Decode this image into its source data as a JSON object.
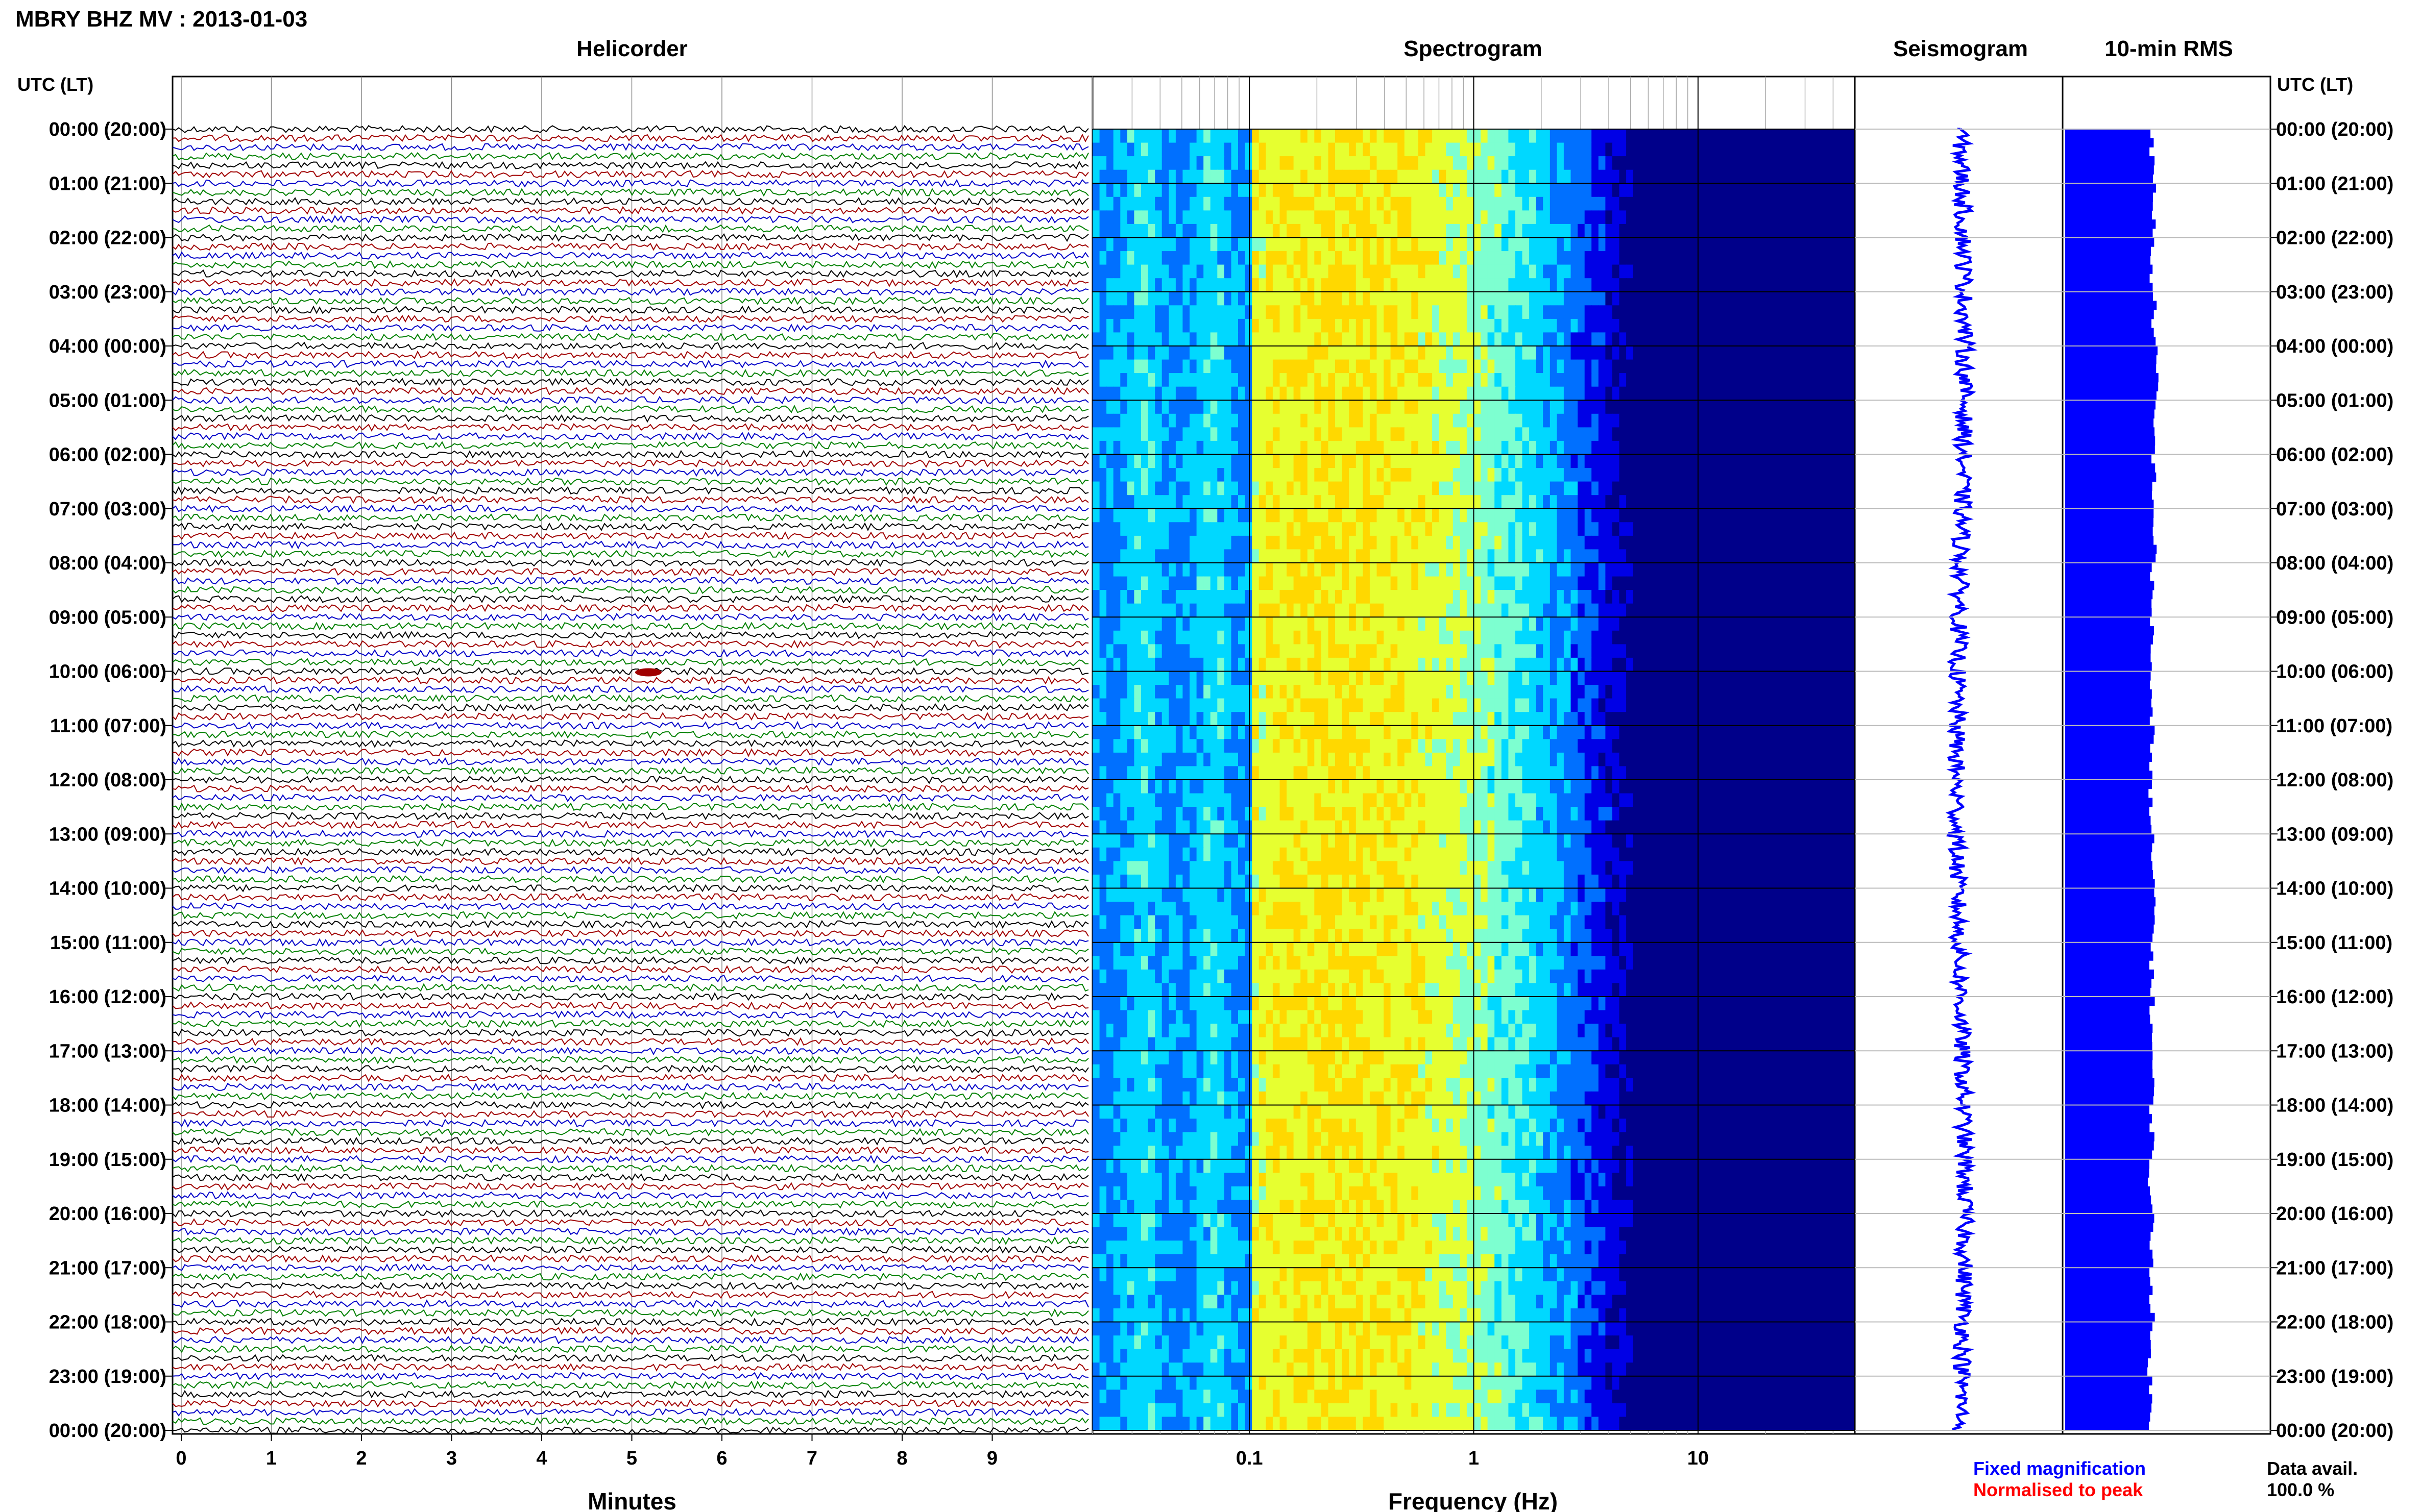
{
  "title": "MBRY BHZ MV : 2013-01-03",
  "panels": {
    "helicorder": "Helicorder",
    "spectrogram": "Spectrogram",
    "seismogram": "Seismogram",
    "rms": "10-min RMS"
  },
  "axis_header": "UTC (LT)",
  "time_labels": [
    "00:00 (20:00)",
    "01:00 (21:00)",
    "02:00 (22:00)",
    "03:00 (23:00)",
    "04:00 (00:00)",
    "05:00 (01:00)",
    "06:00 (02:00)",
    "07:00 (03:00)",
    "08:00 (04:00)",
    "09:00 (05:00)",
    "10:00 (06:00)",
    "11:00 (07:00)",
    "12:00 (08:00)",
    "13:00 (09:00)",
    "14:00 (10:00)",
    "15:00 (11:00)",
    "16:00 (12:00)",
    "17:00 (13:00)",
    "18:00 (14:00)",
    "19:00 (15:00)",
    "20:00 (16:00)",
    "21:00 (17:00)",
    "22:00 (18:00)",
    "23:00 (19:00)",
    "00:00 (20:00)"
  ],
  "helicorder_xlabel": "Minutes",
  "helicorder_ticks": [
    "0",
    "1",
    "2",
    "3",
    "4",
    "5",
    "6",
    "7",
    "8",
    "9"
  ],
  "spectrogram_xlabel": "Frequency (Hz)",
  "spectrogram_ticks": [
    "0.1",
    "1",
    "10"
  ],
  "legend": {
    "fixed": "Fixed magnification",
    "normalised": "Normalised to peak"
  },
  "data_avail": {
    "label": "Data avail.",
    "value": "100.0 %"
  },
  "colors": {
    "trace_cycle": [
      "#000000",
      "#a00000",
      "#0000c8",
      "#008000"
    ],
    "fixed": "#0000ff",
    "normalised": "#ff0000",
    "rms_fill": "#0000ff",
    "spec_colormap": [
      "#00008a",
      "#0000e6",
      "#0070ff",
      "#00d8ff",
      "#7dffd0",
      "#e6ff30",
      "#ffd800"
    ]
  },
  "chart_data": {
    "type": "heatmap",
    "helicorder": {
      "x_range_minutes": [
        0,
        10
      ],
      "rows": 144,
      "row_minutes": 10,
      "event_utc": "10:00"
    },
    "spectrogram": {
      "xscale": "log",
      "x_range_hz": [
        0.02,
        50
      ]
    },
    "rms": {
      "x_range": [
        0,
        1
      ],
      "values": [
        0.46,
        0.47,
        0.46,
        0.47,
        0.48,
        0.47,
        0.47,
        0.47,
        0.46,
        0.46,
        0.45,
        0.46,
        0.45,
        0.46,
        0.47,
        0.46,
        0.46,
        0.46,
        0.46,
        0.45,
        0.46,
        0.46,
        0.45,
        0.45
      ]
    }
  }
}
